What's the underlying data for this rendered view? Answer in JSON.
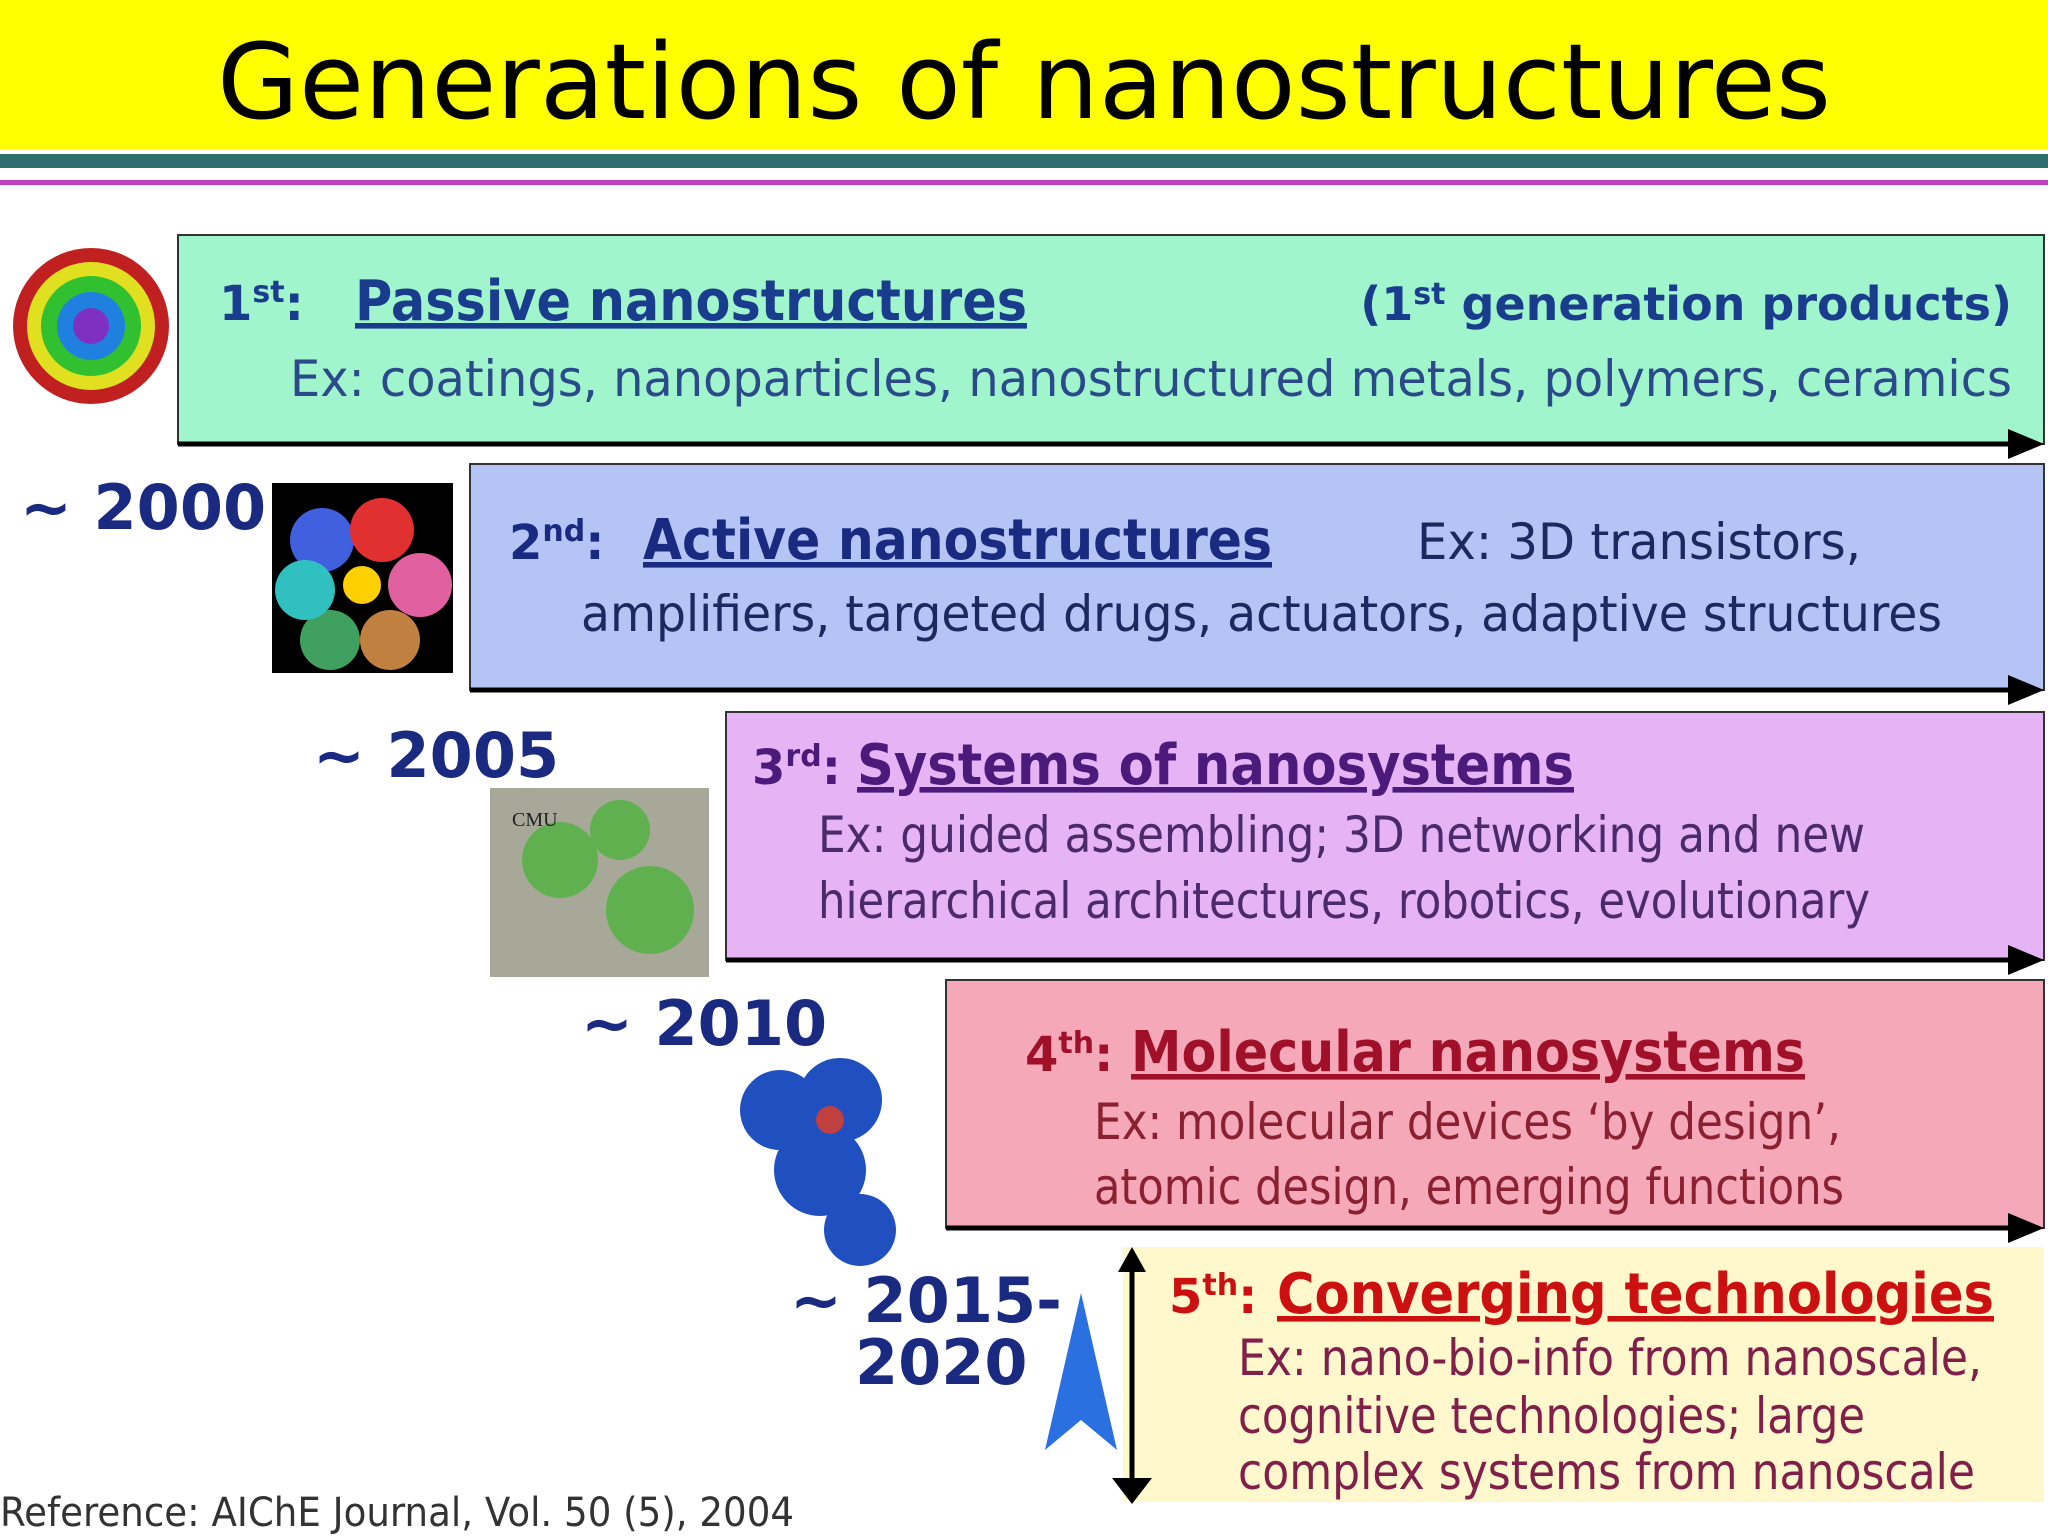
{
  "title": "Generations of nanostructures",
  "generations": [
    {
      "ordinal": "1",
      "suffix": "st",
      "separator": ":",
      "name": "Passive nanostructures",
      "note": {
        "before": "(1",
        "sup": "st",
        "after": " generation products)"
      },
      "examples": [
        "Ex: coatings, nanoparticles, nanostructured metals, polymers, ceramics"
      ]
    },
    {
      "ordinal": "2",
      "suffix": "nd",
      "separator": ":",
      "name": "Active nanostructures",
      "examples": [
        "Ex: 3D transistors,",
        "amplifiers, targeted drugs, actuators, adaptive structures"
      ]
    },
    {
      "ordinal": "3",
      "suffix": "rd",
      "separator": ":",
      "name": "Systems of nanosystems",
      "examples": [
        "Ex: guided assembling; 3D networking and new",
        "hierarchical architectures, robotics, evolutionary"
      ]
    },
    {
      "ordinal": "4",
      "suffix": "th",
      "separator": ":",
      "name": "Molecular nanosystems",
      "examples": [
        "Ex: molecular devices ‘by design’,",
        "atomic design, emerging functions"
      ]
    },
    {
      "ordinal": "5",
      "suffix": "th",
      "separator": ":",
      "name": "Converging technologies",
      "examples": [
        "Ex: nano-bio-info from nanoscale,",
        "cognitive technologies; large",
        "complex systems from nanoscale"
      ]
    }
  ],
  "years": [
    [
      "~ 2000"
    ],
    [
      "~ 2005"
    ],
    [
      "~ 2010"
    ],
    [
      "~ 2015-",
      "2020"
    ]
  ],
  "image_label": "CMU",
  "reference": "Reference: AIChE Journal, Vol. 50 (5), 2004"
}
